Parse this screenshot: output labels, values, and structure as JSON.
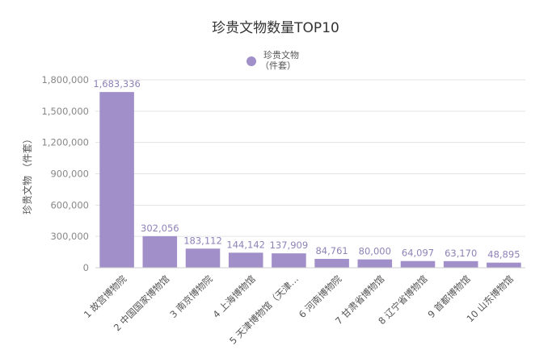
{
  "chart_data": {
    "type": "bar",
    "title": "珍贵文物数量TOP10",
    "legend": {
      "label_line1": "珍贵文物",
      "label_line2": "（件套）",
      "placement": "top-center"
    },
    "ylabel": "珍贵文物 （件套）",
    "xlabel": "",
    "ylim": [
      0,
      1800000
    ],
    "yticks": [
      "0",
      "300,000",
      "600,000",
      "900,000",
      "1,200,000",
      "1,500,000",
      "1,800,000"
    ],
    "ytick_values": [
      0,
      300000,
      600000,
      900000,
      1200000,
      1500000,
      1800000
    ],
    "categories": [
      "1 故宫博物院",
      "2 中国国家博物馆",
      "3 南京博物院",
      "4 上海博物馆",
      "5 天津博物馆（天津…",
      "6 河南博物院",
      "7 甘肃省博物馆",
      "8 辽宁省博物馆",
      "9 首都博物馆",
      "10 山东博物馆"
    ],
    "values": [
      1683336,
      302056,
      183112,
      144142,
      137909,
      84761,
      80000,
      64097,
      63170,
      48895
    ],
    "value_labels": [
      "1,683,336",
      "302,056",
      "183,112",
      "144,142",
      "137,909",
      "84,761",
      "80,000",
      "64,097",
      "63,170",
      "48,895"
    ],
    "colors": {
      "bar": "#a08fc9",
      "label": "#8f82b8"
    }
  }
}
